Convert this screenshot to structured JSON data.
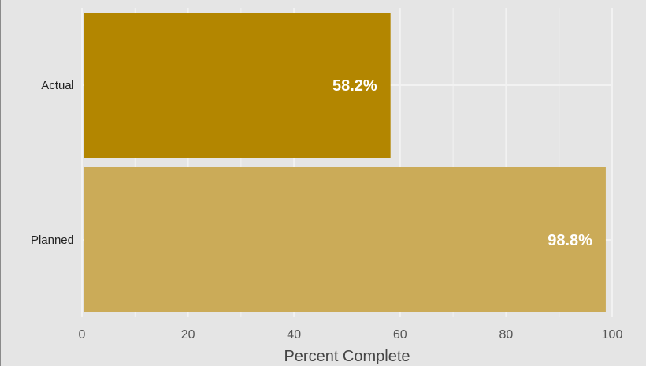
{
  "chart_data": {
    "type": "bar",
    "orientation": "horizontal",
    "categories": [
      "Actual",
      "Planned"
    ],
    "values": [
      58.2,
      98.8
    ],
    "data_labels": [
      "58.2%",
      "98.8%"
    ],
    "xlabel": "Percent Complete",
    "ylabel": "",
    "title": "",
    "xlim": [
      0,
      100
    ],
    "x_ticks": [
      0,
      20,
      40,
      60,
      80,
      100
    ],
    "x_tick_labels": [
      "0",
      "20",
      "40",
      "60",
      "80",
      "100"
    ],
    "grid": true,
    "legend": "none",
    "colors": {
      "background": "#e5e5e5",
      "grid": "#f2f2f2",
      "bars": [
        "#b38600",
        "#cbab58"
      ],
      "data_label": "#ffffff"
    }
  }
}
